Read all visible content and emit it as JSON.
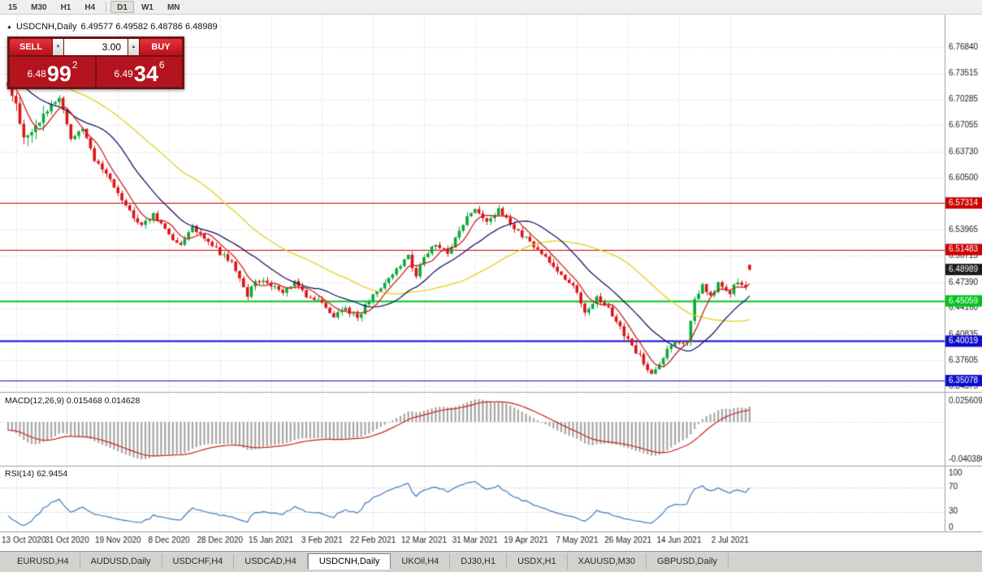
{
  "toolbar": {
    "timeframes": [
      "15",
      "M30",
      "H1",
      "H4",
      "D1",
      "W1",
      "MN"
    ],
    "active": "D1"
  },
  "header": {
    "symbol": "USDCNH,Daily",
    "ohlc": "6.49577 6.49582 6.48786 6.48989"
  },
  "trade_panel": {
    "sell_label": "SELL",
    "buy_label": "BUY",
    "lot_size": "3.00",
    "sell_price": {
      "big_prefix": "6.48",
      "big": "99",
      "sup": "2"
    },
    "buy_price": {
      "big_prefix": "6.49",
      "big": "34",
      "sup": "6"
    }
  },
  "tabs": [
    {
      "label": "EURUSD,H4",
      "active": false
    },
    {
      "label": "AUDUSD,Daily",
      "active": false
    },
    {
      "label": "USDCHF,H4",
      "active": false
    },
    {
      "label": "USDCAD,H4",
      "active": false
    },
    {
      "label": "USDCNH,Daily",
      "active": true
    },
    {
      "label": "UKOil,H4",
      "active": false
    },
    {
      "label": "DJ30,H1",
      "active": false
    },
    {
      "label": "USDX,H1",
      "active": false
    },
    {
      "label": "XAUUSD,M30",
      "active": false
    },
    {
      "label": "GBPUSD,Daily",
      "active": false
    }
  ],
  "chart_data": {
    "type": "candlestick",
    "symbol": "USDCNH",
    "timeframe": "Daily",
    "num_candles": 190,
    "prehistory_bars": 50,
    "last_candle": {
      "o": 6.49577,
      "h": 6.49582,
      "l": 6.48786,
      "c": 6.48989
    },
    "price_keypoints": [
      [
        -50,
        6.78
      ],
      [
        -10,
        6.735
      ],
      [
        0,
        6.72
      ],
      [
        2,
        6.695
      ],
      [
        4,
        6.655
      ],
      [
        7,
        6.668
      ],
      [
        10,
        6.69
      ],
      [
        13,
        6.703
      ],
      [
        16,
        6.655
      ],
      [
        19,
        6.666
      ],
      [
        22,
        6.626
      ],
      [
        26,
        6.602
      ],
      [
        28,
        6.586
      ],
      [
        31,
        6.562
      ],
      [
        34,
        6.546
      ],
      [
        37,
        6.558
      ],
      [
        41,
        6.532
      ],
      [
        44,
        6.521
      ],
      [
        47,
        6.542
      ],
      [
        50,
        6.527
      ],
      [
        54,
        6.511
      ],
      [
        57,
        6.5
      ],
      [
        59,
        6.476
      ],
      [
        61,
        6.456
      ],
      [
        63,
        6.476
      ],
      [
        67,
        6.47
      ],
      [
        70,
        6.461
      ],
      [
        73,
        6.476
      ],
      [
        76,
        6.456
      ],
      [
        80,
        6.45
      ],
      [
        83,
        6.432
      ],
      [
        86,
        6.441
      ],
      [
        89,
        6.428
      ],
      [
        93,
        6.46
      ],
      [
        96,
        6.472
      ],
      [
        99,
        6.49
      ],
      [
        102,
        6.506
      ],
      [
        104,
        6.481
      ],
      [
        106,
        6.506
      ],
      [
        109,
        6.521
      ],
      [
        112,
        6.511
      ],
      [
        115,
        6.541
      ],
      [
        119,
        6.567
      ],
      [
        122,
        6.552
      ],
      [
        125,
        6.564
      ],
      [
        128,
        6.548
      ],
      [
        132,
        6.528
      ],
      [
        135,
        6.514
      ],
      [
        138,
        6.5
      ],
      [
        141,
        6.481
      ],
      [
        145,
        6.464
      ],
      [
        147,
        6.436
      ],
      [
        150,
        6.455
      ],
      [
        153,
        6.441
      ],
      [
        156,
        6.416
      ],
      [
        158,
        6.401
      ],
      [
        161,
        6.381
      ],
      [
        164,
        6.36
      ],
      [
        166,
        6.371
      ],
      [
        168,
        6.391
      ],
      [
        171,
        6.401
      ],
      [
        173,
        6.396
      ],
      [
        175,
        6.451
      ],
      [
        177,
        6.471
      ],
      [
        179,
        6.456
      ],
      [
        181,
        6.471
      ],
      [
        184,
        6.462
      ],
      [
        186,
        6.476
      ],
      [
        188,
        6.47
      ],
      [
        189,
        6.49
      ]
    ],
    "y_axis": {
      "price_top": 6.809,
      "price_bottom": 6.3387,
      "labels": [
        "6.76840",
        "6.73515",
        "6.70285",
        "6.67055",
        "6.63730",
        "6.60500",
        "6.53965",
        "6.50715",
        "6.47390",
        "6.44160",
        "6.40835",
        "6.37605",
        "6.34375"
      ]
    },
    "x_ticks": [
      {
        "i": 2,
        "label": "13 Oct 2020"
      },
      {
        "i": 15,
        "label": "31 Oct 2020"
      },
      {
        "i": 28,
        "label": "19 Nov 2020"
      },
      {
        "i": 41,
        "label": "8 Dec 2020"
      },
      {
        "i": 54,
        "label": "28 Dec 2020"
      },
      {
        "i": 67,
        "label": "15 Jan 2021"
      },
      {
        "i": 80,
        "label": "3 Feb 2021"
      },
      {
        "i": 93,
        "label": "22 Feb 2021"
      },
      {
        "i": 106,
        "label": "12 Mar 2021"
      },
      {
        "i": 119,
        "label": "31 Mar 2021"
      },
      {
        "i": 132,
        "label": "19 Apr 2021"
      },
      {
        "i": 145,
        "label": "7 May 2021"
      },
      {
        "i": 158,
        "label": "26 May 2021"
      },
      {
        "i": 171,
        "label": "14 Jun 2021"
      },
      {
        "i": 184,
        "label": "2 Jul 2021"
      }
    ],
    "hlines": [
      {
        "price": 6.57314,
        "label": "6.57314",
        "color": "#cc0000",
        "width": 1
      },
      {
        "price": 6.51483,
        "label": "6.51483",
        "color": "#cc0000",
        "width": 1
      },
      {
        "price": 6.45059,
        "label": "6.45059",
        "color": "#00c41e",
        "width": 2
      },
      {
        "price": 6.40019,
        "label": "6.40019",
        "color": "#0c0ccc",
        "width": 2
      },
      {
        "price": 6.35078,
        "label": "6.35078",
        "color": "#0c0ccc",
        "width": 1
      }
    ],
    "current_price": {
      "price": 6.48989,
      "label": "6.48989",
      "badge_color": "#1a1a1a"
    },
    "moving_averages": [
      {
        "period": 42,
        "color": "#e2d01c"
      },
      {
        "period": 18,
        "color": "#16166a"
      },
      {
        "period": 6,
        "color": "#cc2020"
      }
    ],
    "macd": {
      "label": "MACD(12,26,9) 0.015468 0.014628",
      "params": "12,26,9",
      "value_main": "0.015468",
      "value_signal": "0.014628",
      "axis_top_label": "0.025609",
      "axis_bottom_label": "-0.040380",
      "histogram_color": "#a6a6a6",
      "signal_color": "#cc2020"
    },
    "rsi": {
      "label": "RSI(14) 62.9454",
      "params": "14",
      "value": "62.9454",
      "line_color": "#3c78be",
      "levels": [
        {
          "value": 100,
          "label": "100"
        },
        {
          "value": 70,
          "label": "70"
        },
        {
          "value": 30,
          "label": "30"
        },
        {
          "value": 0,
          "label": "0"
        }
      ]
    },
    "colors": {
      "up": "#0ca83c",
      "down": "#dc1414",
      "grid": "#d2d2d2",
      "separator": "#a0a0a0",
      "axis_text": "#1a1a1a",
      "background": "#ffffff"
    }
  }
}
